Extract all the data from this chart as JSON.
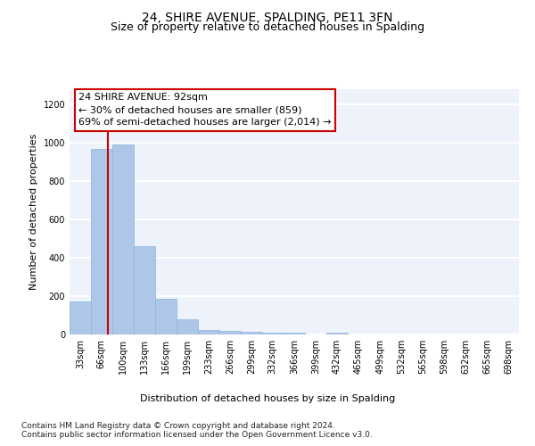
{
  "title": "24, SHIRE AVENUE, SPALDING, PE11 3FN",
  "subtitle": "Size of property relative to detached houses in Spalding",
  "xlabel": "Distribution of detached houses by size in Spalding",
  "ylabel": "Number of detached properties",
  "footnote1": "Contains HM Land Registry data © Crown copyright and database right 2024.",
  "footnote2": "Contains public sector information licensed under the Open Government Licence v3.0.",
  "annotation_line1": "24 SHIRE AVENUE: 92sqm",
  "annotation_line2": "← 30% of detached houses are smaller (859)",
  "annotation_line3": "69% of semi-detached houses are larger (2,014) →",
  "bar_color": "#aec6e8",
  "bar_edge_color": "#8ab4d8",
  "vline_color": "#cc0000",
  "vline_x": 92,
  "bin_starts": [
    33,
    66,
    100,
    133,
    166,
    199,
    233,
    266,
    299,
    332,
    366,
    399,
    432,
    465,
    499,
    532,
    565,
    598,
    632,
    665,
    698
  ],
  "bin_width": 33,
  "bar_heights": [
    170,
    970,
    990,
    460,
    185,
    80,
    22,
    18,
    12,
    10,
    10,
    0,
    10,
    0,
    0,
    0,
    0,
    0,
    0,
    0,
    0
  ],
  "ylim": [
    0,
    1280
  ],
  "yticks": [
    0,
    200,
    400,
    600,
    800,
    1000,
    1200
  ],
  "background_color": "#eef2fa",
  "grid_color": "#ffffff",
  "title_fontsize": 10,
  "subtitle_fontsize": 9,
  "axis_label_fontsize": 8,
  "tick_fontsize": 7,
  "annotation_fontsize": 8,
  "footnote_fontsize": 6.5
}
